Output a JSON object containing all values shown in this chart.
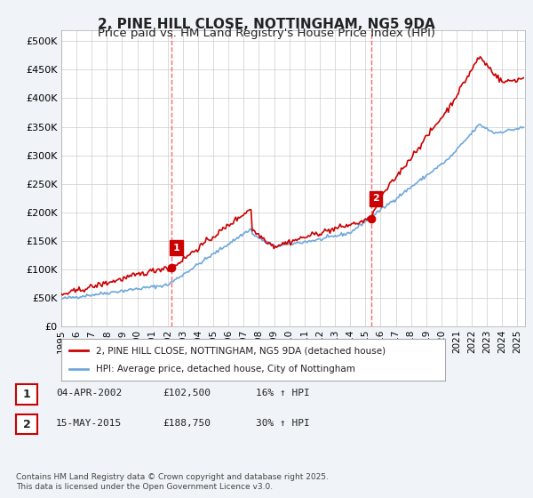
{
  "title": "2, PINE HILL CLOSE, NOTTINGHAM, NG5 9DA",
  "subtitle": "Price paid vs. HM Land Registry's House Price Index (HPI)",
  "title_fontsize": 11,
  "subtitle_fontsize": 9.5,
  "ylabel_ticks": [
    "£0",
    "£50K",
    "£100K",
    "£150K",
    "£200K",
    "£250K",
    "£300K",
    "£350K",
    "£400K",
    "£450K",
    "£500K"
  ],
  "ytick_vals": [
    0,
    50000,
    100000,
    150000,
    200000,
    250000,
    300000,
    350000,
    400000,
    450000,
    500000
  ],
  "ylim": [
    0,
    520000
  ],
  "xlim_start": 1995.0,
  "xlim_end": 2025.5,
  "xtick_years": [
    1995,
    1996,
    1997,
    1998,
    1999,
    2000,
    2001,
    2002,
    2003,
    2004,
    2005,
    2006,
    2007,
    2008,
    2009,
    2010,
    2011,
    2012,
    2013,
    2014,
    2015,
    2016,
    2017,
    2018,
    2019,
    2020,
    2021,
    2022,
    2023,
    2024,
    2025
  ],
  "purchase1_x": 2002.27,
  "purchase1_y": 102500,
  "purchase2_x": 2015.37,
  "purchase2_y": 188750,
  "hpi_color": "#6fa8dc",
  "price_color": "#cc0000",
  "vline_color": "#ff6666",
  "annotation_box_color": "#cc0000",
  "background_color": "#f0f4f8",
  "plot_bg_color": "#ffffff",
  "legend_label_price": "2, PINE HILL CLOSE, NOTTINGHAM, NG5 9DA (detached house)",
  "legend_label_hpi": "HPI: Average price, detached house, City of Nottingham",
  "footer": "Contains HM Land Registry data © Crown copyright and database right 2025.\nThis data is licensed under the Open Government Licence v3.0.",
  "table_rows": [
    {
      "num": "1",
      "date": "04-APR-2002",
      "price": "£102,500",
      "hpi": "16% ↑ HPI"
    },
    {
      "num": "2",
      "date": "15-MAY-2015",
      "price": "£188,750",
      "hpi": "30% ↑ HPI"
    }
  ]
}
